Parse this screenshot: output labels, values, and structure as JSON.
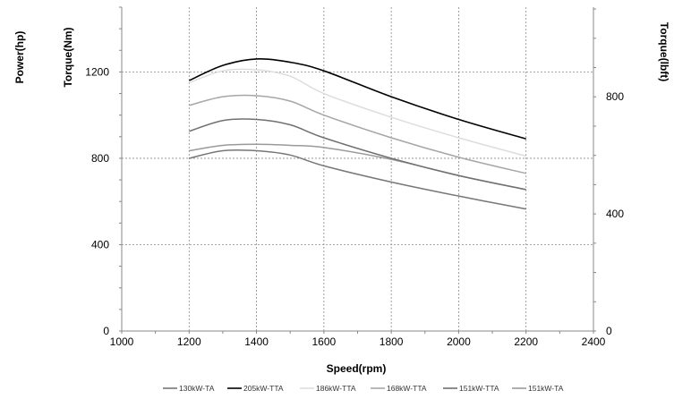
{
  "chart_data": {
    "type": "line",
    "xlabel": "Speed(rpm)",
    "ylabel_left_outer": "Power(hp)",
    "ylabel": "Torque(Nm)",
    "ylabel_right": "Torque(lbft)",
    "xlim": [
      1000,
      2400
    ],
    "ylim": [
      0,
      1500
    ],
    "y_right_lim": [
      0,
      1106.3
    ],
    "x_ticks": [
      1000,
      1200,
      1400,
      1600,
      1800,
      2000,
      2200,
      2400
    ],
    "y_ticks": [
      0,
      400,
      800,
      1200
    ],
    "y_right_ticks": [
      0,
      400,
      800
    ],
    "x_grid": [
      1200,
      1400,
      1600,
      1800,
      2000,
      2200
    ],
    "y_grid": [
      400,
      800,
      1200
    ],
    "grid": true,
    "grid_style": "dotted",
    "legend_position": "bottom",
    "series": [
      {
        "name": "130kW-TA",
        "color": "#777777",
        "x": [
          1200,
          1300,
          1400,
          1500,
          1600,
          1800,
          2000,
          2200
        ],
        "y": [
          800,
          835,
          835,
          815,
          765,
          690,
          625,
          565
        ]
      },
      {
        "name": "205kW-TTA",
        "color": "#000000",
        "x": [
          1200,
          1300,
          1400,
          1500,
          1600,
          1800,
          2000,
          2200
        ],
        "y": [
          1160,
          1230,
          1260,
          1245,
          1205,
          1085,
          980,
          890
        ]
      },
      {
        "name": "186kW-TTA",
        "color": "#dddddd",
        "x": [
          1200,
          1300,
          1400,
          1500,
          1600,
          1800,
          2000,
          2200
        ],
        "y": [
          1150,
          1205,
          1210,
          1180,
          1100,
          990,
          895,
          810
        ]
      },
      {
        "name": "168kW-TTA",
        "color": "#a6a6a6",
        "x": [
          1200,
          1300,
          1400,
          1500,
          1600,
          1800,
          2000,
          2200
        ],
        "y": [
          1045,
          1085,
          1090,
          1065,
          1000,
          895,
          805,
          730
        ]
      },
      {
        "name": "151kW-TTA",
        "color": "#707070",
        "x": [
          1200,
          1300,
          1400,
          1500,
          1600,
          1800,
          2000,
          2200
        ],
        "y": [
          925,
          975,
          980,
          955,
          895,
          800,
          720,
          655
        ]
      },
      {
        "name": "151kW-TA",
        "color": "#9a9a9a",
        "x": [
          1200,
          1300,
          1400,
          1500,
          1600,
          1800,
          2000,
          2200
        ],
        "y": [
          835,
          860,
          865,
          860,
          850,
          795,
          720,
          655
        ]
      }
    ]
  }
}
